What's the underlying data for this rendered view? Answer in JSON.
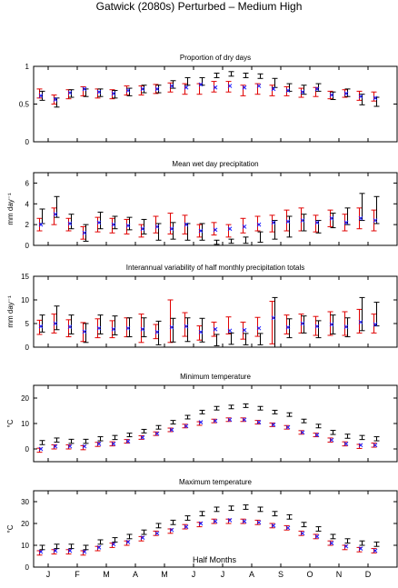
{
  "figure": {
    "title": "Gatwick (2080s) Perturbed – Medium High",
    "xlabel": "Half Months",
    "month_labels": [
      "J",
      "F",
      "M",
      "A",
      "M",
      "J",
      "J",
      "A",
      "S",
      "O",
      "N",
      "D"
    ]
  },
  "chart_data": [
    {
      "type": "scatter",
      "title": "Proportion of dry days",
      "ylabel": "",
      "ylim": [
        0,
        1
      ],
      "yticks": [
        0,
        0.5,
        1
      ],
      "yticklabels": [
        "0",
        "0.5",
        "1"
      ],
      "x": [
        1,
        2,
        3,
        4,
        5,
        6,
        7,
        8,
        9,
        10,
        11,
        12,
        13,
        14,
        15,
        16,
        17,
        18,
        19,
        20,
        21,
        22,
        23,
        24
      ],
      "series": [
        {
          "marker": "black error bar",
          "mid": [
            0.61,
            0.52,
            0.64,
            0.65,
            0.65,
            0.63,
            0.66,
            0.7,
            0.7,
            0.76,
            0.8,
            0.8,
            0.88,
            0.9,
            0.88,
            0.87,
            0.78,
            0.72,
            0.69,
            0.72,
            0.61,
            0.65,
            0.56,
            0.53
          ],
          "err": [
            0.06,
            0.06,
            0.05,
            0.05,
            0.05,
            0.05,
            0.05,
            0.05,
            0.05,
            0.05,
            0.05,
            0.05,
            0.03,
            0.03,
            0.03,
            0.03,
            0.06,
            0.05,
            0.06,
            0.05,
            0.05,
            0.05,
            0.07,
            0.06
          ]
        },
        {
          "marker": "red error bar",
          "mid": [
            0.64,
            0.56,
            0.63,
            0.67,
            0.64,
            0.63,
            0.68,
            0.68,
            0.7,
            0.72,
            0.7,
            0.7,
            0.73,
            0.73,
            0.68,
            0.7,
            0.68,
            0.67,
            0.65,
            0.66,
            0.62,
            0.64,
            0.61,
            0.6
          ],
          "err": [
            0.06,
            0.06,
            0.06,
            0.06,
            0.06,
            0.06,
            0.06,
            0.06,
            0.06,
            0.06,
            0.07,
            0.07,
            0.07,
            0.07,
            0.07,
            0.07,
            0.07,
            0.06,
            0.06,
            0.06,
            0.05,
            0.05,
            0.06,
            0.06
          ]
        },
        {
          "marker": "blue x",
          "values": [
            0.61,
            0.56,
            0.65,
            0.7,
            0.66,
            0.64,
            0.68,
            0.7,
            0.7,
            0.74,
            0.72,
            0.76,
            0.72,
            0.74,
            0.72,
            0.74,
            0.7,
            0.68,
            0.66,
            0.7,
            0.62,
            0.64,
            0.6,
            0.58
          ]
        }
      ]
    },
    {
      "type": "scatter",
      "title": "Mean wet day precipitation",
      "ylabel": "mm day⁻¹",
      "ylim": [
        0,
        7
      ],
      "yticks": [
        0,
        2,
        4,
        6
      ],
      "yticklabels": [
        "0",
        "2",
        "4",
        "6"
      ],
      "x": [
        1,
        2,
        3,
        4,
        5,
        6,
        7,
        8,
        9,
        10,
        11,
        12,
        13,
        14,
        15,
        16,
        17,
        18,
        19,
        20,
        21,
        22,
        23,
        24
      ],
      "series": [
        {
          "marker": "black error bar",
          "mid": [
            2.8,
            3.7,
            2.3,
            1.2,
            2.4,
            2.2,
            2.1,
            1.8,
            1.3,
            1.4,
            1.3,
            1.3,
            0.3,
            0.4,
            0.5,
            0.8,
            1.5,
            1.8,
            2.2,
            1.8,
            2.4,
            2.8,
            3.7,
            3.4
          ],
          "err": [
            0.7,
            1.0,
            0.7,
            0.8,
            0.8,
            0.6,
            0.6,
            0.7,
            0.8,
            0.8,
            0.8,
            0.8,
            0.2,
            0.2,
            0.3,
            0.5,
            0.9,
            1.0,
            0.8,
            0.6,
            0.7,
            0.8,
            1.3,
            1.3
          ]
        },
        {
          "marker": "red error bar",
          "mid": [
            2.0,
            2.8,
            2.0,
            1.2,
            2.0,
            1.9,
            1.8,
            1.4,
            2.0,
            2.1,
            2.0,
            1.4,
            1.6,
            1.4,
            1.9,
            2.1,
            2.1,
            2.4,
            2.5,
            2.1,
            2.6,
            2.2,
            2.6,
            2.4
          ],
          "err": [
            0.6,
            0.8,
            0.6,
            0.6,
            0.7,
            0.7,
            0.7,
            0.6,
            0.8,
            1.0,
            0.9,
            0.6,
            0.6,
            0.6,
            0.7,
            0.7,
            0.8,
            1.0,
            1.1,
            0.8,
            0.8,
            0.8,
            1.0,
            1.0
          ]
        },
        {
          "marker": "blue x",
          "values": [
            2.0,
            3.0,
            2.1,
            1.2,
            2.2,
            2.0,
            1.9,
            1.6,
            1.8,
            1.6,
            2.0,
            1.4,
            1.5,
            1.6,
            1.8,
            2.0,
            2.2,
            2.3,
            2.4,
            2.2,
            2.6,
            2.2,
            2.6,
            2.4
          ]
        }
      ]
    },
    {
      "type": "scatter",
      "title": "Interannual variability of half monthly precipitation totals",
      "ylabel": "mm day⁻¹",
      "ylim": [
        0,
        15
      ],
      "yticks": [
        0,
        5,
        10,
        15
      ],
      "yticklabels": [
        "0",
        "5",
        "10",
        "15"
      ],
      "x": [
        1,
        2,
        3,
        4,
        5,
        6,
        7,
        8,
        9,
        10,
        11,
        12,
        13,
        14,
        15,
        16,
        17,
        18,
        19,
        20,
        21,
        22,
        23,
        24
      ],
      "series": [
        {
          "marker": "black error bar",
          "mid": [
            5.0,
            6.2,
            4.8,
            3.0,
            4.8,
            4.6,
            4.2,
            4.2,
            3.0,
            3.6,
            3.7,
            3.6,
            1.5,
            1.8,
            1.7,
            1.7,
            5.0,
            4.0,
            4.8,
            3.8,
            4.8,
            4.2,
            7.0,
            7.0
          ],
          "err": [
            1.8,
            2.5,
            2.0,
            2.0,
            2.0,
            2.0,
            2.0,
            2.0,
            2.5,
            2.5,
            2.5,
            2.5,
            1.2,
            1.2,
            1.2,
            1.2,
            5.5,
            2.0,
            1.8,
            1.8,
            2.0,
            2.0,
            3.5,
            2.5
          ]
        },
        {
          "marker": "red error bar",
          "mid": [
            4.2,
            5.0,
            4.0,
            3.2,
            4.0,
            3.8,
            4.2,
            4.0,
            3.3,
            5.5,
            4.8,
            3.0,
            3.8,
            4.6,
            3.5,
            4.3,
            5.2,
            4.8,
            5.0,
            4.5,
            5.0,
            5.0,
            5.5,
            5.0
          ],
          "err": [
            1.5,
            2.0,
            1.8,
            2.0,
            2.0,
            1.8,
            2.0,
            3.0,
            1.5,
            4.5,
            2.5,
            1.5,
            1.5,
            1.8,
            1.8,
            2.0,
            4.5,
            2.0,
            2.0,
            2.0,
            2.5,
            2.5,
            2.5,
            2.0
          ]
        },
        {
          "marker": "blue x",
          "values": [
            4.4,
            5.0,
            4.3,
            3.3,
            4.0,
            3.8,
            4.0,
            3.8,
            3.2,
            4.2,
            4.4,
            3.2,
            3.8,
            3.5,
            3.6,
            4.0,
            6.2,
            4.2,
            5.0,
            4.4,
            4.8,
            4.3,
            5.3,
            4.8
          ]
        }
      ]
    },
    {
      "type": "scatter",
      "title": "Minimum temperature",
      "ylabel": "°C",
      "ylim": [
        -5,
        25
      ],
      "yticks": [
        0,
        10,
        20
      ],
      "yticklabels": [
        "0",
        "10",
        "20"
      ],
      "x": [
        1,
        2,
        3,
        4,
        5,
        6,
        7,
        8,
        9,
        10,
        11,
        12,
        13,
        14,
        15,
        16,
        17,
        18,
        19,
        20,
        21,
        22,
        23,
        24
      ],
      "series": [
        {
          "marker": "black error bar",
          "mid": [
            2.5,
            3.5,
            3.0,
            3.0,
            4.0,
            4.5,
            5.5,
            7.0,
            8.5,
            10.5,
            12.5,
            14.5,
            16.0,
            16.5,
            17.0,
            16.0,
            14.5,
            13.5,
            11.0,
            9.0,
            6.5,
            5.0,
            4.5,
            4.0
          ],
          "err": [
            0.8,
            0.8,
            0.8,
            0.8,
            0.8,
            0.8,
            0.7,
            0.7,
            0.7,
            0.7,
            0.7,
            0.7,
            0.7,
            0.7,
            0.7,
            0.7,
            0.7,
            0.7,
            0.7,
            0.7,
            0.8,
            0.8,
            0.8,
            0.8
          ]
        },
        {
          "marker": "red error bar",
          "mid": [
            -0.5,
            0.8,
            0.8,
            0.5,
            1.8,
            2.0,
            3.0,
            4.5,
            6.0,
            7.5,
            9.0,
            10.0,
            11.0,
            11.5,
            11.5,
            10.5,
            9.5,
            8.5,
            6.5,
            5.5,
            3.5,
            2.0,
            1.0,
            1.5
          ],
          "err": [
            0.8,
            0.8,
            0.8,
            0.8,
            0.8,
            0.8,
            0.7,
            0.7,
            0.7,
            0.7,
            0.7,
            0.7,
            0.7,
            0.7,
            0.7,
            0.7,
            0.7,
            0.7,
            0.7,
            0.7,
            0.8,
            0.8,
            0.8,
            0.8
          ]
        },
        {
          "marker": "blue x",
          "values": [
            0.0,
            1.0,
            1.0,
            1.0,
            2.0,
            2.0,
            3.0,
            4.5,
            6.0,
            7.5,
            9.0,
            10.5,
            11.0,
            11.5,
            11.5,
            10.5,
            9.5,
            8.5,
            6.5,
            5.5,
            3.5,
            2.0,
            1.5,
            1.5
          ]
        }
      ]
    },
    {
      "type": "scatter",
      "title": "Maximum temperature",
      "ylabel": "°C",
      "ylim": [
        0,
        35
      ],
      "yticks": [
        0,
        10,
        20,
        30
      ],
      "yticklabels": [
        "0",
        "10",
        "20",
        "30"
      ],
      "x": [
        1,
        2,
        3,
        4,
        5,
        6,
        7,
        8,
        9,
        10,
        11,
        12,
        13,
        14,
        15,
        16,
        17,
        18,
        19,
        20,
        21,
        22,
        23,
        24
      ],
      "series": [
        {
          "marker": "black error bar",
          "mid": [
            9.0,
            9.5,
            9.5,
            9.0,
            11.5,
            12.5,
            14.0,
            16.0,
            19.0,
            20.5,
            22.5,
            24.5,
            26.5,
            27.0,
            27.5,
            26.5,
            24.5,
            23.0,
            19.5,
            17.5,
            14.0,
            12.0,
            11.0,
            10.5
          ],
          "err": [
            1.0,
            1.0,
            1.0,
            1.0,
            1.0,
            1.0,
            1.0,
            1.0,
            1.0,
            1.0,
            1.0,
            1.0,
            1.0,
            1.0,
            1.0,
            1.0,
            1.0,
            1.0,
            1.0,
            1.0,
            1.0,
            1.0,
            1.0,
            1.0
          ]
        },
        {
          "marker": "red error bar",
          "mid": [
            6.5,
            7.0,
            7.0,
            6.5,
            8.5,
            10.0,
            11.0,
            13.0,
            15.5,
            16.5,
            18.5,
            19.5,
            21.0,
            21.0,
            21.0,
            20.5,
            19.0,
            18.0,
            15.5,
            14.0,
            11.0,
            9.0,
            8.0,
            7.5
          ],
          "err": [
            1.0,
            1.0,
            1.0,
            1.0,
            1.0,
            1.0,
            1.0,
            1.0,
            1.0,
            1.0,
            1.0,
            1.0,
            1.0,
            1.0,
            1.0,
            1.0,
            1.0,
            1.0,
            1.0,
            1.0,
            1.0,
            1.0,
            1.0,
            1.0
          ]
        },
        {
          "marker": "blue x",
          "values": [
            7.0,
            7.5,
            7.5,
            7.0,
            9.0,
            10.5,
            11.5,
            13.5,
            15.5,
            17.0,
            18.5,
            20.0,
            21.0,
            21.5,
            21.0,
            20.5,
            19.0,
            18.0,
            15.5,
            14.0,
            11.0,
            9.5,
            8.5,
            7.5
          ]
        }
      ]
    }
  ],
  "colors": {
    "black_bars": "#000000",
    "red_bars": "#e00000",
    "blue_markers": "#1a1aff"
  }
}
